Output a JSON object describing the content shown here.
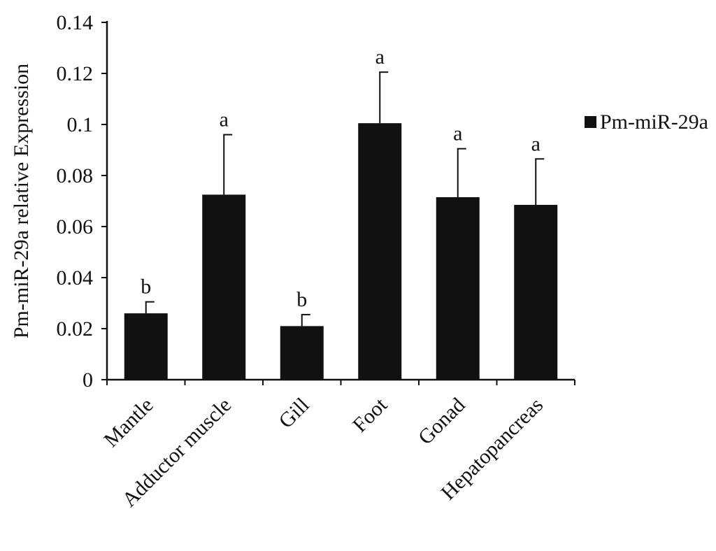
{
  "chart_data": {
    "type": "bar",
    "title": "",
    "xlabel": "",
    "ylabel": "Pm-miR-29a relative Expression",
    "ylim": [
      0,
      0.14
    ],
    "yticks": [
      0,
      0.02,
      0.04,
      0.06,
      0.08,
      0.1,
      0.12,
      0.14
    ],
    "ytick_labels": [
      "0",
      "0.02",
      "0.04",
      "0.06",
      "0.08",
      "0.1",
      "0.12",
      "0.14"
    ],
    "categories": [
      "Mantle",
      "Adductor muscle",
      "Gill",
      "Foot",
      "Gonad",
      "Hepatopancreas"
    ],
    "series": [
      {
        "name": "Pm-miR-29a",
        "color": "#111111",
        "values": [
          0.026,
          0.0725,
          0.021,
          0.1005,
          0.0715,
          0.0685
        ],
        "error_upper": [
          0.0045,
          0.0235,
          0.0045,
          0.02,
          0.019,
          0.018
        ],
        "significance": [
          "b",
          "a",
          "b",
          "a",
          "a",
          "a"
        ]
      }
    ],
    "legend_position": "right",
    "grid": false
  }
}
